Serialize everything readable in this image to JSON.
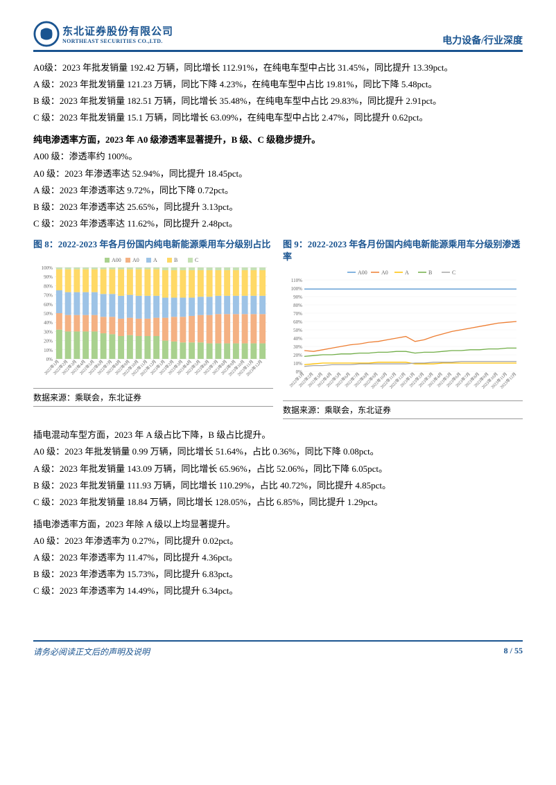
{
  "header": {
    "logo_cn": "东北证券股份有限公司",
    "logo_en": "NORTHEAST SECURITIES CO.,LTD.",
    "right_text": "电力设备/行业深度"
  },
  "section1": {
    "lines": [
      "A0级：2023 年批发销量 192.42 万辆，同比增长 112.91%，在纯电车型中占比 31.45%，同比提升 13.39pct。",
      "A 级：2023 年批发销量 121.23 万辆，同比下降 4.23%，在纯电车型中占比 19.81%，同比下降 5.48pct。",
      "B 级：2023 年批发销量 182.51 万辆，同比增长 35.48%，在纯电车型中占比 29.83%，同比提升 2.91pct。",
      "C 级：2023 年批发销量 15.1 万辆，同比增长 63.09%，在纯电车型中占比 2.47%，同比提升 0.62pct。"
    ]
  },
  "section2": {
    "title": "纯电渗透率方面，2023 年 A0 级渗透率显著提升，B 级、C 级稳步提升。",
    "lines": [
      "A00 级：渗透率约 100%。",
      "A0 级：2023 年渗透率达 52.94%，同比提升 18.45pct。",
      "A 级：2023 年渗透率达 9.72%，同比下降 0.72pct。",
      "B 级：2023 年渗透率达 25.65%，同比提升 3.13pct。",
      "C 级：2023 年渗透率达 11.62%，同比提升 2.48pct。"
    ]
  },
  "chart8": {
    "title": "图 8：2022-2023 年各月份国内纯电新能源乘用车分级别占比",
    "source": "数据来源：乘联会，东北证券",
    "type": "stacked-bar",
    "legend": [
      "A00",
      "A0",
      "A",
      "B",
      "C"
    ],
    "colors": {
      "A00": "#a9d18e",
      "A0": "#f4b183",
      "A": "#9dc3e6",
      "B": "#ffd966",
      "C": "#c5e0b4"
    },
    "xlabels": [
      "2022年1月",
      "2022年2月",
      "2022年3月",
      "2022年4月",
      "2022年5月",
      "2022年6月",
      "2022年7月",
      "2022年8月",
      "2022年9月",
      "2022年10月",
      "2022年11月",
      "2022年12月",
      "2023年1月",
      "2023年2月",
      "2023年3月",
      "2023年4月",
      "2023年5月",
      "2023年6月",
      "2023年7月",
      "2023年8月",
      "2023年9月",
      "2023年10月",
      "2023年11月",
      "2023年12月"
    ],
    "ylim": [
      0,
      100
    ],
    "ytick_step": 10,
    "series": {
      "A00": [
        32,
        30,
        30,
        30,
        30,
        28,
        27,
        25,
        26,
        25,
        25,
        25,
        20,
        19,
        18,
        18,
        18,
        17,
        17,
        17,
        17,
        17,
        17,
        17
      ],
      "A0": [
        18,
        18,
        18,
        18,
        18,
        18,
        19,
        19,
        19,
        19,
        19,
        20,
        25,
        27,
        28,
        29,
        30,
        31,
        32,
        32,
        32,
        32,
        32,
        32
      ],
      "A": [
        25,
        25,
        25,
        25,
        25,
        25,
        25,
        25,
        25,
        25,
        25,
        24,
        22,
        21,
        21,
        20,
        20,
        20,
        20,
        20,
        20,
        20,
        20,
        20
      ],
      "B": [
        23,
        25,
        25,
        25,
        25,
        27,
        27,
        29,
        28,
        29,
        29,
        29,
        30,
        30,
        30,
        30,
        29,
        29,
        28,
        28,
        28,
        28,
        28,
        28
      ],
      "C": [
        2,
        2,
        2,
        2,
        2,
        2,
        2,
        2,
        2,
        2,
        2,
        2,
        3,
        3,
        3,
        3,
        3,
        3,
        3,
        3,
        3,
        3,
        3,
        3
      ]
    },
    "grid_color": "#e0e0e0",
    "axis_fontsize": 7
  },
  "chart9": {
    "title": "图 9：2022-2023 年各月份国内纯电新能源乘用车分级别渗透率",
    "source": "数据来源：乘联会，东北证券",
    "type": "line",
    "legend": [
      "A00",
      "A0",
      "A",
      "B",
      "C"
    ],
    "colors": {
      "A00": "#5b9bd5",
      "A0": "#ed7d31",
      "A": "#ffc000",
      "B": "#70ad47",
      "C": "#a5a5a5"
    },
    "xlabels": [
      "2022年1月",
      "2022年2月",
      "2022年3月",
      "2022年4月",
      "2022年5月",
      "2022年6月",
      "2022年7月",
      "2022年8月",
      "2022年9月",
      "2022年10月",
      "2022年11月",
      "2022年12月",
      "2023年1月",
      "2023年2月",
      "2023年3月",
      "2023年4月",
      "2023年5月",
      "2023年6月",
      "2023年7月",
      "2023年8月",
      "2023年9月",
      "2023年10月",
      "2023年11月",
      "2023年12月"
    ],
    "ylim": [
      0,
      110
    ],
    "ytick_step": 10,
    "series": {
      "A00": [
        99,
        99,
        99,
        99,
        99,
        99,
        99,
        99,
        99,
        99,
        99,
        99,
        99,
        99,
        99,
        99,
        99,
        99,
        99,
        99,
        99,
        99,
        99,
        99
      ],
      "A0": [
        25,
        24,
        26,
        28,
        30,
        32,
        33,
        35,
        36,
        38,
        40,
        42,
        36,
        38,
        42,
        45,
        48,
        50,
        52,
        54,
        56,
        58,
        59,
        60
      ],
      "A": [
        8,
        9,
        10,
        10,
        10,
        10,
        10,
        10,
        11,
        11,
        11,
        11,
        9,
        9,
        9,
        10,
        10,
        10,
        10,
        10,
        10,
        10,
        10,
        10
      ],
      "B": [
        18,
        19,
        20,
        20,
        21,
        21,
        22,
        22,
        23,
        23,
        24,
        24,
        22,
        23,
        23,
        24,
        25,
        25,
        26,
        26,
        27,
        27,
        28,
        28
      ],
      "C": [
        6,
        7,
        7,
        8,
        8,
        8,
        9,
        9,
        9,
        9,
        9,
        9,
        10,
        10,
        11,
        11,
        11,
        12,
        12,
        12,
        12,
        12,
        12,
        12
      ]
    },
    "grid_color": "#f0f0f0",
    "axis_fontsize": 7
  },
  "section3": {
    "title": "插电混动车型方面，2023 年 A 级占比下降，B 级占比提升。",
    "lines": [
      "A0 级：2023 年批发销量 0.99 万辆，同比增长 51.64%，占比 0.36%，同比下降 0.08pct。",
      "A 级：2023 年批发销量 143.09 万辆，同比增长 65.96%，占比 52.06%，同比下降 6.05pct。",
      "B 级：2023 年批发销量 111.93 万辆，同比增长 110.29%，占比 40.72%，同比提升 4.85pct。",
      "C 级：2023 年批发销量 18.84 万辆，同比增长 128.05%，占比 6.85%，同比提升 1.29pct。"
    ]
  },
  "section4": {
    "title": "插电渗透率方面，2023 年除 A 级以上均显著提升。",
    "lines": [
      "A0 级：2023 年渗透率为 0.27%，同比提升 0.02pct。",
      "A 级：2023 年渗透率为 11.47%，同比提升 4.36pct。",
      "B 级：2023 年渗透率为 15.73%，同比提升 6.83pct。",
      "C 级：2023 年渗透率为 14.49%，同比提升 6.34pct。"
    ]
  },
  "footer": {
    "left": "请务必阅读正文后的声明及说明",
    "right": "8 / 55"
  }
}
